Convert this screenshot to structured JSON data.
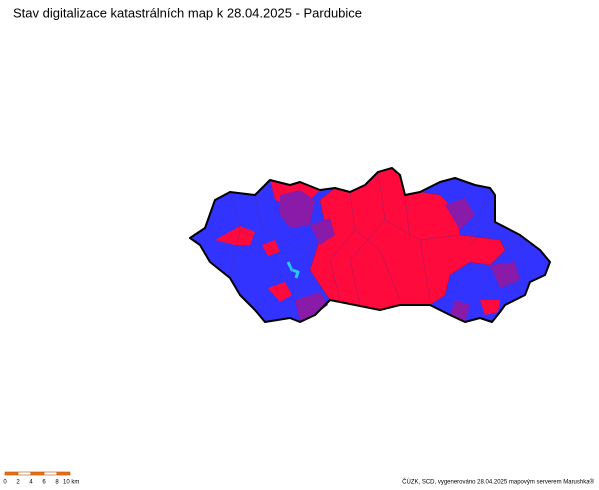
{
  "title": "Stav digitalizace katastrálních map k 28.04.2025 - Pardubice",
  "scale_bar": {
    "labels": [
      "0",
      "2",
      "4",
      "6",
      "8",
      "10 km"
    ]
  },
  "credit": "ČÚZK, SCD, vygenerováno 28.04.2025 mapovým serverem Marushka®"
}
